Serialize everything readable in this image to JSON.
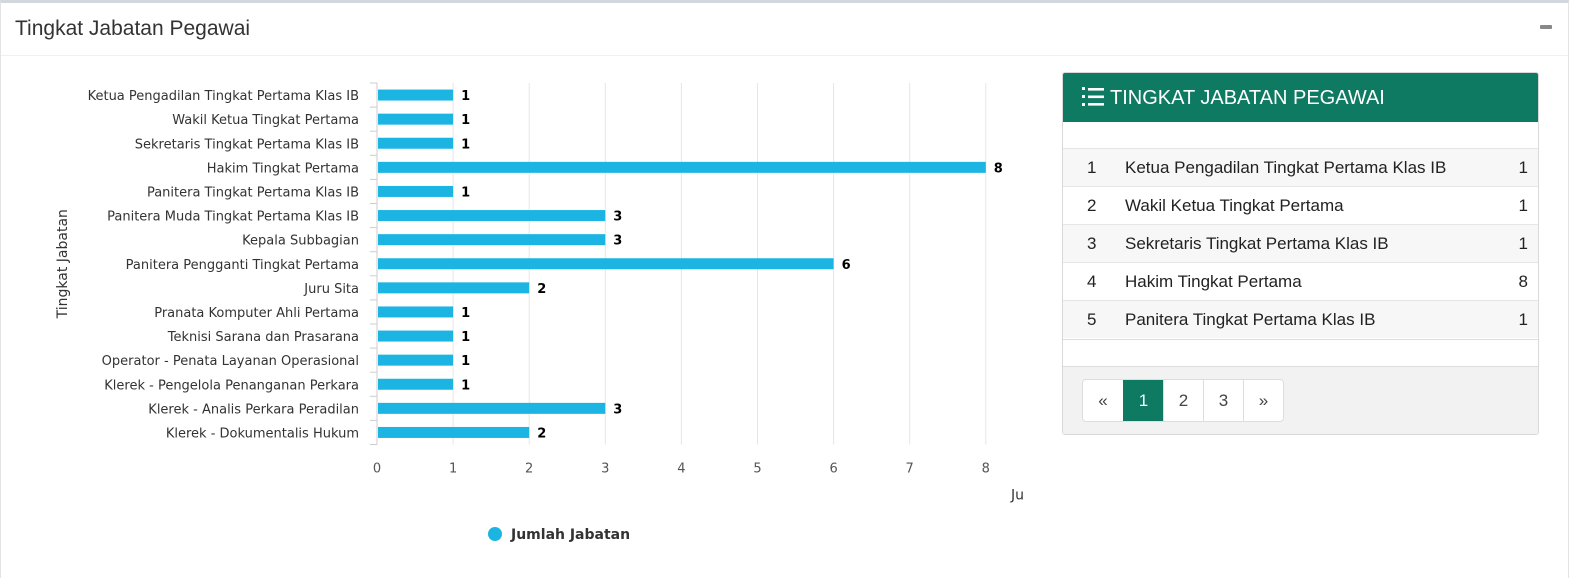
{
  "box": {
    "title": "Tingkat Jabatan Pegawai"
  },
  "chart_data": {
    "type": "bar",
    "orientation": "horizontal",
    "categories": [
      "Ketua Pengadilan Tingkat Pertama Klas IB",
      "Wakil Ketua Tingkat Pertama",
      "Sekretaris Tingkat Pertama Klas IB",
      "Hakim Tingkat Pertama",
      "Panitera Tingkat Pertama Klas IB",
      "Panitera Muda Tingkat Pertama Klas IB",
      "Kepala Subbagian",
      "Panitera Pengganti Tingkat Pertama",
      "Juru Sita",
      "Pranata Komputer Ahli Pertama",
      "Teknisi Sarana dan Prasarana",
      "Operator - Penata Layanan Operasional",
      "Klerek - Pengelola Penanganan Perkara",
      "Klerek - Analis Perkara Peradilan",
      "Klerek - Dokumentalis Hukum"
    ],
    "series": [
      {
        "name": "Jumlah Jabatan",
        "values": [
          1,
          1,
          1,
          8,
          1,
          3,
          3,
          6,
          2,
          1,
          1,
          1,
          1,
          3,
          2
        ]
      }
    ],
    "xlabel": "Ju",
    "ylabel": "Tingkat Jabatan",
    "xticks": [
      "0",
      "1",
      "2",
      "3",
      "4",
      "5",
      "6",
      "7",
      "8"
    ],
    "xlim": [
      0,
      8.5
    ],
    "grid": true,
    "legend": "bottom",
    "color": "#1cb4e2"
  },
  "panel": {
    "title": "TINGKAT JABATAN PEGAWAI",
    "icon": "list-ol-icon",
    "header_color": "#0e7a62",
    "rows": [
      {
        "no": "1",
        "name": "Ketua Pengadilan Tingkat Pertama Klas IB",
        "value": "1"
      },
      {
        "no": "2",
        "name": "Wakil Ketua Tingkat Pertama",
        "value": "1"
      },
      {
        "no": "3",
        "name": "Sekretaris Tingkat Pertama Klas IB",
        "value": "1"
      },
      {
        "no": "4",
        "name": "Hakim Tingkat Pertama",
        "value": "8"
      },
      {
        "no": "5",
        "name": "Panitera Tingkat Pertama Klas IB",
        "value": "1"
      }
    ],
    "pagination": {
      "prev": "«",
      "pages": [
        "1",
        "2",
        "3"
      ],
      "active": "1",
      "next": "»"
    }
  }
}
